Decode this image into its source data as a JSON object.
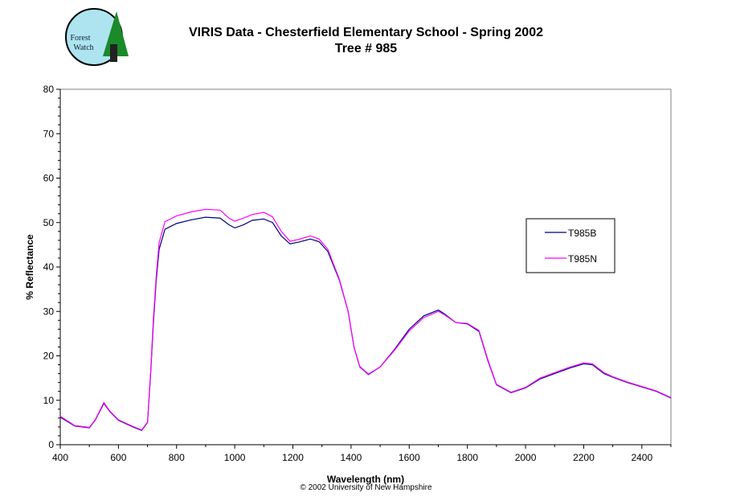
{
  "logo_text": "Forest Watch",
  "copyright": "© 2002 University of New Hampshire",
  "chart_data": {
    "type": "line",
    "title": "VIRIS Data - Chesterfield Elementary School - Spring 2002",
    "subtitle": "Tree # 985",
    "xlabel": "Wavelength (nm)",
    "ylabel": "% Reflectance",
    "xlim": [
      400,
      2500
    ],
    "ylim": [
      0,
      80
    ],
    "xticks": [
      400,
      600,
      800,
      1000,
      1200,
      1400,
      1600,
      1800,
      2000,
      2200,
      2400
    ],
    "yticks": [
      0,
      10,
      20,
      30,
      40,
      50,
      60,
      70,
      80
    ],
    "grid": false,
    "legend": "right",
    "series": [
      {
        "name": "T985B",
        "color": "#000080",
        "points": [
          [
            400,
            6.2
          ],
          [
            450,
            4.2
          ],
          [
            500,
            3.8
          ],
          [
            520,
            5.5
          ],
          [
            550,
            9.3
          ],
          [
            570,
            7.5
          ],
          [
            600,
            5.5
          ],
          [
            650,
            4
          ],
          [
            680,
            3.2
          ],
          [
            700,
            5
          ],
          [
            710,
            15
          ],
          [
            720,
            27
          ],
          [
            730,
            37
          ],
          [
            740,
            44
          ],
          [
            760,
            48.5
          ],
          [
            800,
            49.8
          ],
          [
            850,
            50.6
          ],
          [
            900,
            51.2
          ],
          [
            950,
            51
          ],
          [
            980,
            49.5
          ],
          [
            1000,
            48.8
          ],
          [
            1030,
            49.5
          ],
          [
            1060,
            50.5
          ],
          [
            1100,
            50.8
          ],
          [
            1130,
            50
          ],
          [
            1160,
            47
          ],
          [
            1190,
            45.2
          ],
          [
            1220,
            45.6
          ],
          [
            1260,
            46.3
          ],
          [
            1290,
            45.7
          ],
          [
            1320,
            43.5
          ],
          [
            1360,
            37
          ],
          [
            1390,
            30
          ],
          [
            1410,
            22
          ],
          [
            1430,
            17.5
          ],
          [
            1460,
            15.8
          ],
          [
            1500,
            17.5
          ],
          [
            1550,
            21.5
          ],
          [
            1600,
            26
          ],
          [
            1650,
            29
          ],
          [
            1700,
            30.3
          ],
          [
            1720,
            29.5
          ],
          [
            1760,
            27.5
          ],
          [
            1800,
            27.2
          ],
          [
            1840,
            25.5
          ],
          [
            1870,
            19
          ],
          [
            1900,
            13.5
          ],
          [
            1950,
            11.7
          ],
          [
            2000,
            12.8
          ],
          [
            2050,
            14.8
          ],
          [
            2100,
            16
          ],
          [
            2150,
            17.2
          ],
          [
            2200,
            18.2
          ],
          [
            2230,
            18
          ],
          [
            2270,
            16
          ],
          [
            2300,
            15.2
          ],
          [
            2350,
            14
          ],
          [
            2400,
            13
          ],
          [
            2450,
            12
          ],
          [
            2500,
            10.5
          ]
        ]
      },
      {
        "name": "T985N",
        "color": "#FF00FF",
        "points": [
          [
            400,
            6.4
          ],
          [
            450,
            4.3
          ],
          [
            500,
            3.9
          ],
          [
            520,
            5.6
          ],
          [
            550,
            9.5
          ],
          [
            570,
            7.6
          ],
          [
            600,
            5.6
          ],
          [
            650,
            4.1
          ],
          [
            680,
            3.3
          ],
          [
            700,
            5.1
          ],
          [
            710,
            15.5
          ],
          [
            720,
            28
          ],
          [
            730,
            38
          ],
          [
            740,
            45.5
          ],
          [
            760,
            50.2
          ],
          [
            800,
            51.5
          ],
          [
            850,
            52.4
          ],
          [
            900,
            53
          ],
          [
            950,
            52.8
          ],
          [
            980,
            51
          ],
          [
            1000,
            50.3
          ],
          [
            1030,
            51
          ],
          [
            1060,
            51.8
          ],
          [
            1100,
            52.3
          ],
          [
            1130,
            51.3
          ],
          [
            1160,
            48
          ],
          [
            1190,
            45.8
          ],
          [
            1220,
            46.2
          ],
          [
            1260,
            47
          ],
          [
            1290,
            46.3
          ],
          [
            1320,
            44
          ],
          [
            1360,
            37.2
          ],
          [
            1390,
            30
          ],
          [
            1410,
            22
          ],
          [
            1430,
            17.6
          ],
          [
            1460,
            15.9
          ],
          [
            1500,
            17.5
          ],
          [
            1550,
            21.3
          ],
          [
            1600,
            25.6
          ],
          [
            1650,
            28.6
          ],
          [
            1700,
            30
          ],
          [
            1720,
            29.3
          ],
          [
            1760,
            27.5
          ],
          [
            1800,
            27.3
          ],
          [
            1840,
            25.7
          ],
          [
            1870,
            19.2
          ],
          [
            1900,
            13.6
          ],
          [
            1950,
            11.8
          ],
          [
            2000,
            12.9
          ],
          [
            2050,
            15
          ],
          [
            2100,
            16.2
          ],
          [
            2150,
            17.4
          ],
          [
            2200,
            18.4
          ],
          [
            2230,
            18.2
          ],
          [
            2270,
            16.2
          ],
          [
            2300,
            15.3
          ],
          [
            2350,
            14.1
          ],
          [
            2400,
            13.1
          ],
          [
            2450,
            12.1
          ],
          [
            2500,
            10.6
          ]
        ]
      }
    ]
  }
}
